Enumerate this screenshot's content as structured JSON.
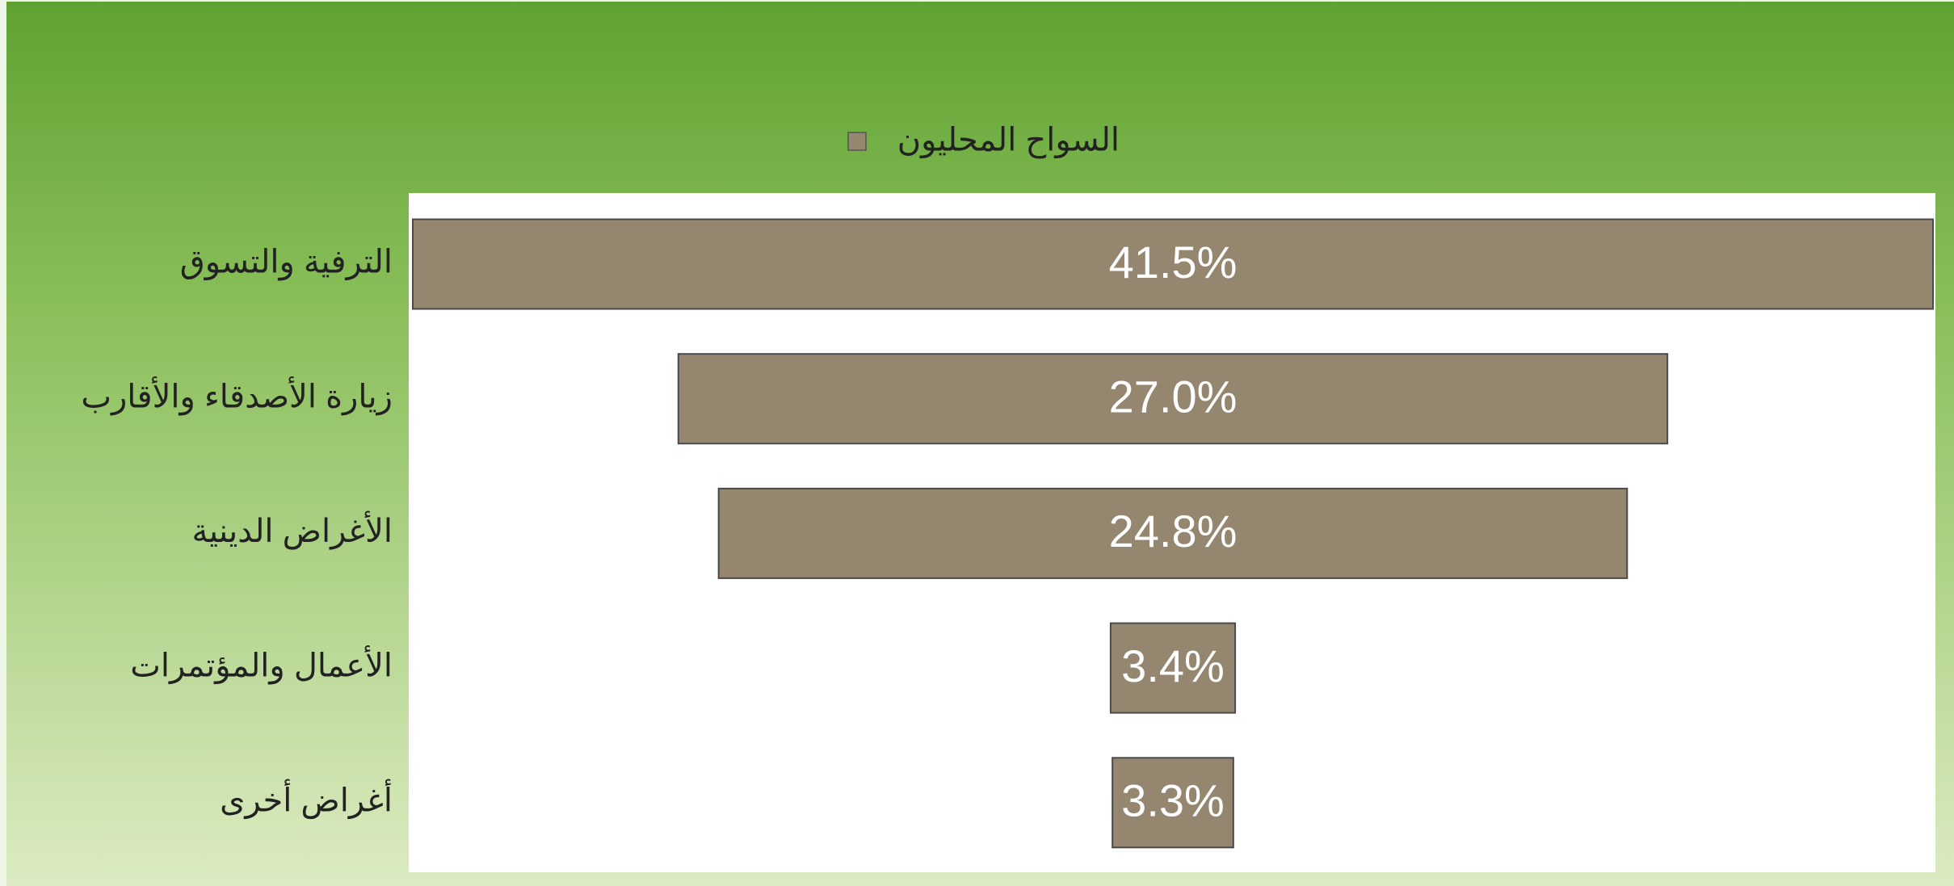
{
  "chart_data": {
    "type": "funnel",
    "categories": [
      "الترفية والتسوق",
      "زيارة الأصدقاء والأقارب",
      "الأغراض الدينية",
      "الأعمال والمؤتمرات",
      "أغراض أخرى"
    ],
    "series": [
      {
        "name": "السواح المحليون",
        "color": "#958670",
        "values": [
          41.5,
          27.0,
          24.8,
          3.4,
          3.3
        ],
        "value_labels": [
          "41.5%",
          "27.0%",
          "24.8%",
          "3.4%",
          "3.3%"
        ]
      }
    ],
    "legend": "top"
  }
}
